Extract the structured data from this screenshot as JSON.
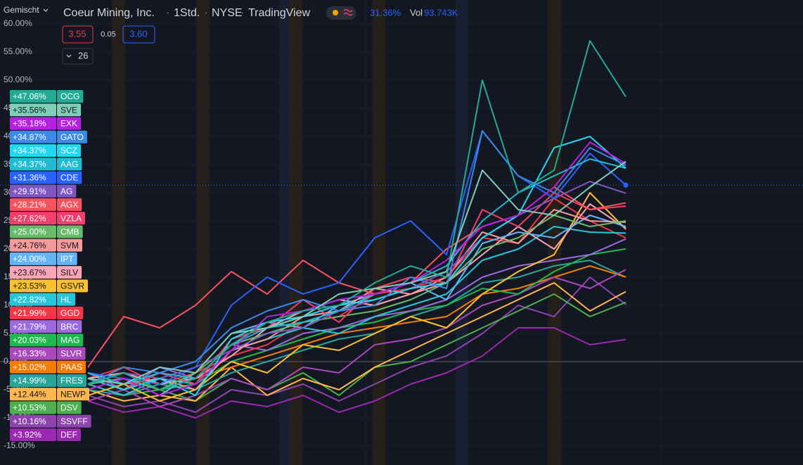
{
  "header": {
    "title": "Coeur Mining, Inc.",
    "interval": "1Std.",
    "exchange": "NYSE",
    "source": "TradingView",
    "change": "31.36%",
    "volume_label": "Vol",
    "volume": "93.743K"
  },
  "toolbar": {
    "scale_mode": "Gemischt",
    "bid": "3.55",
    "spread": "0.05",
    "ask": "3.60",
    "symbol_count": "26"
  },
  "chart_data": {
    "type": "line",
    "ylim": [
      -18.375,
      64.25
    ],
    "yticks": [
      {
        "value": 60,
        "label": "60.00%"
      },
      {
        "value": 55,
        "label": "55.00%"
      },
      {
        "value": 50,
        "label": "50.00%"
      },
      {
        "value": 45,
        "label": "45.00%"
      },
      {
        "value": 40,
        "label": "40.00%"
      },
      {
        "value": 35,
        "label": "35.00%"
      },
      {
        "value": 30,
        "label": "30.00%"
      },
      {
        "value": 25,
        "label": "25.00%"
      },
      {
        "value": 20,
        "label": "20.00%"
      },
      {
        "value": 15,
        "label": "15.00%"
      },
      {
        "value": 10,
        "label": "10.00%"
      },
      {
        "value": 5,
        "label": "5.00%"
      },
      {
        "value": 0,
        "label": "0.00%"
      },
      {
        "value": -5,
        "label": "-5.00%"
      },
      {
        "value": -10,
        "label": "-10.00%"
      },
      {
        "value": -15,
        "label": "-15.00%"
      }
    ],
    "grid": true,
    "series": [
      {
        "name": "OCG",
        "color": "#22ab94",
        "values": [
          -4,
          -2,
          -5,
          -3,
          3,
          7,
          9,
          10,
          14,
          17,
          15,
          50,
          30,
          34,
          57,
          47.06
        ],
        "value_labels": [
          "+47.06%"
        ]
      },
      {
        "name": "SVE",
        "color": "#7dcfb6",
        "values": [
          -3,
          -4,
          -1,
          -2,
          5,
          6,
          8,
          12,
          13,
          14,
          16,
          34,
          27,
          26,
          31,
          35.56
        ],
        "value_labels": [
          "+35.56%"
        ]
      },
      {
        "name": "EXK",
        "color": "#b620e0",
        "values": [
          -5,
          -3,
          -6,
          -4,
          2,
          8,
          9,
          11,
          12,
          14,
          18,
          24,
          26,
          31,
          39,
          35.18
        ],
        "value_labels": [
          "+35.18%"
        ]
      },
      {
        "name": "GATO",
        "color": "#3c8ae8",
        "values": [
          -4,
          -1,
          -2,
          0,
          6,
          9,
          11,
          9,
          10,
          15,
          13,
          41,
          33,
          30,
          38,
          34.87
        ],
        "value_labels": [
          "+34.87%"
        ]
      },
      {
        "name": "SCZ",
        "color": "#20d8f0",
        "values": [
          -3,
          -5,
          -3,
          -6,
          4,
          7,
          8,
          10,
          11,
          13,
          14,
          22,
          26,
          38,
          40,
          34.37
        ],
        "value_labels": [
          "+34.37%"
        ]
      },
      {
        "name": "AAG",
        "color": "#1fbcd2",
        "values": [
          -2,
          -4,
          -2,
          -3,
          3,
          6,
          7,
          9,
          12,
          14,
          17,
          25,
          30,
          33,
          36,
          34.37
        ],
        "value_labels": [
          "+34.37%"
        ]
      },
      {
        "name": "CDE",
        "color": "#2962ff",
        "main": true,
        "values": [
          -2,
          -3,
          -4,
          -1,
          10,
          15,
          12,
          14,
          22,
          25,
          19,
          41,
          33,
          29,
          37,
          31.36
        ],
        "value_labels": [
          "+31.36%"
        ]
      },
      {
        "name": "AG",
        "color": "#7e57c2",
        "values": [
          -4,
          -2,
          -3,
          -1,
          2,
          5,
          6,
          9,
          11,
          13,
          16,
          22,
          26,
          29,
          32,
          29.91
        ],
        "value_labels": [
          "+29.91%"
        ]
      },
      {
        "name": "AGX",
        "color": "#f7525f",
        "values": [
          -1,
          8,
          6,
          10,
          16,
          12,
          18,
          14,
          12,
          14,
          20,
          24,
          26,
          31,
          27,
          28.21
        ],
        "value_labels": [
          "+28.21%"
        ]
      },
      {
        "name": "VZLA",
        "color": "#f23f6b",
        "values": [
          -3,
          -5,
          -2,
          -4,
          4,
          6,
          11,
          7,
          13,
          15,
          14,
          27,
          24,
          30,
          27,
          27.62
        ],
        "value_labels": [
          "+27.62%"
        ]
      },
      {
        "name": "CMB",
        "color": "#66bb6a",
        "values": [
          -4,
          -3,
          -5,
          -2,
          3,
          5,
          7,
          8,
          9,
          11,
          14,
          20,
          22,
          26,
          24,
          25.0
        ],
        "value_labels": [
          "+25.00%"
        ]
      },
      {
        "name": "SVM",
        "color": "#f49a9a",
        "values": [
          -2,
          -4,
          -3,
          -5,
          2,
          4,
          8,
          9,
          13,
          12,
          15,
          23,
          21,
          27,
          25,
          24.76
        ],
        "value_labels": [
          "+24.76%"
        ]
      },
      {
        "name": "IPT",
        "color": "#64b5f6",
        "values": [
          -5,
          -3,
          -6,
          -2,
          5,
          7,
          6,
          10,
          12,
          14,
          11,
          21,
          23,
          22,
          26,
          24.0
        ],
        "value_labels": [
          "+24.00%"
        ]
      },
      {
        "name": "SILV",
        "color": "#f8a5b5",
        "values": [
          -3,
          -2,
          -4,
          -3,
          1,
          6,
          9,
          11,
          10,
          12,
          14,
          19,
          24,
          20,
          28,
          23.67
        ],
        "value_labels": [
          "+23.67%"
        ]
      },
      {
        "name": "GSVR",
        "color": "#fbc02d",
        "values": [
          -6,
          -4,
          -7,
          -5,
          0,
          -2,
          3,
          2,
          5,
          8,
          6,
          12,
          16,
          19,
          30,
          23.53
        ],
        "value_labels": [
          "+23.53%"
        ]
      },
      {
        "name": "HL",
        "color": "#26c6da",
        "values": [
          -4,
          -6,
          -3,
          -4,
          2,
          4,
          6,
          5,
          8,
          10,
          12,
          18,
          20,
          24,
          23,
          22.82
        ],
        "value_labels": [
          "+22.82%"
        ]
      },
      {
        "name": "GGD",
        "color": "#f23645",
        "values": [
          -3,
          -1,
          -4,
          -2,
          1,
          3,
          7,
          8,
          12,
          13,
          15,
          22,
          21,
          29,
          25,
          21.99
        ],
        "value_labels": [
          "+21.99%"
        ]
      },
      {
        "name": "BRC",
        "color": "#9c6ade",
        "values": [
          -2,
          -5,
          -1,
          -3,
          3,
          2,
          5,
          6,
          8,
          9,
          11,
          15,
          17,
          18,
          19,
          21.79
        ],
        "value_labels": [
          "+21.79%"
        ]
      },
      {
        "name": "MAG",
        "color": "#1fba4d",
        "values": [
          -5,
          -3,
          -5,
          -4,
          0,
          2,
          4,
          6,
          7,
          9,
          10,
          13,
          12,
          16,
          19,
          20.03
        ],
        "value_labels": [
          "+20.03%"
        ]
      },
      {
        "name": "SLVR",
        "color": "#ab47bc",
        "values": [
          -7,
          -5,
          -8,
          -6,
          -3,
          -5,
          -1,
          -2,
          3,
          4,
          6,
          10,
          12,
          15,
          13,
          16.33
        ],
        "value_labels": [
          "+16.33%"
        ]
      },
      {
        "name": "PAAS",
        "color": "#f57c00",
        "values": [
          -4,
          -3,
          -5,
          -3,
          -1,
          1,
          3,
          5,
          6,
          7,
          8,
          12,
          13,
          15,
          17,
          15.02
        ],
        "value_labels": [
          "+15.02%"
        ]
      },
      {
        "name": "FRES",
        "color": "#26a69a",
        "values": [
          -5,
          -6,
          -4,
          -5,
          -2,
          0,
          2,
          4,
          5,
          8,
          10,
          14,
          15,
          17,
          18,
          14.99
        ],
        "value_labels": [
          "+14.99%"
        ]
      },
      {
        "name": "NEWP",
        "color": "#ffb74d",
        "values": [
          -5,
          -7,
          -6,
          -7,
          -1,
          -6,
          -3,
          -5,
          -1,
          2,
          5,
          8,
          11,
          14,
          9,
          12.44
        ],
        "value_labels": [
          "+12.44%"
        ]
      },
      {
        "name": "DSV",
        "color": "#4caf50",
        "values": [
          -4,
          -6,
          -5,
          -7,
          -3,
          -5,
          -2,
          -6,
          -1,
          0,
          3,
          6,
          9,
          12,
          8,
          10.53
        ],
        "value_labels": [
          "+10.53%"
        ]
      },
      {
        "name": "SSVFF",
        "color": "#8e44ad",
        "values": [
          -6,
          -8,
          -7,
          -9,
          -5,
          -6,
          -4,
          -7,
          -4,
          -1,
          1,
          5,
          10,
          8,
          15,
          10.16
        ],
        "value_labels": [
          "+10.16%"
        ]
      },
      {
        "name": "DEF",
        "color": "#9c27b0",
        "values": [
          -7,
          -9,
          -8,
          -10,
          -7,
          -8,
          -6,
          -9,
          -7,
          -4,
          -2,
          1,
          6,
          6,
          3,
          3.92
        ],
        "value_labels": [
          "+3.92%"
        ]
      }
    ]
  }
}
